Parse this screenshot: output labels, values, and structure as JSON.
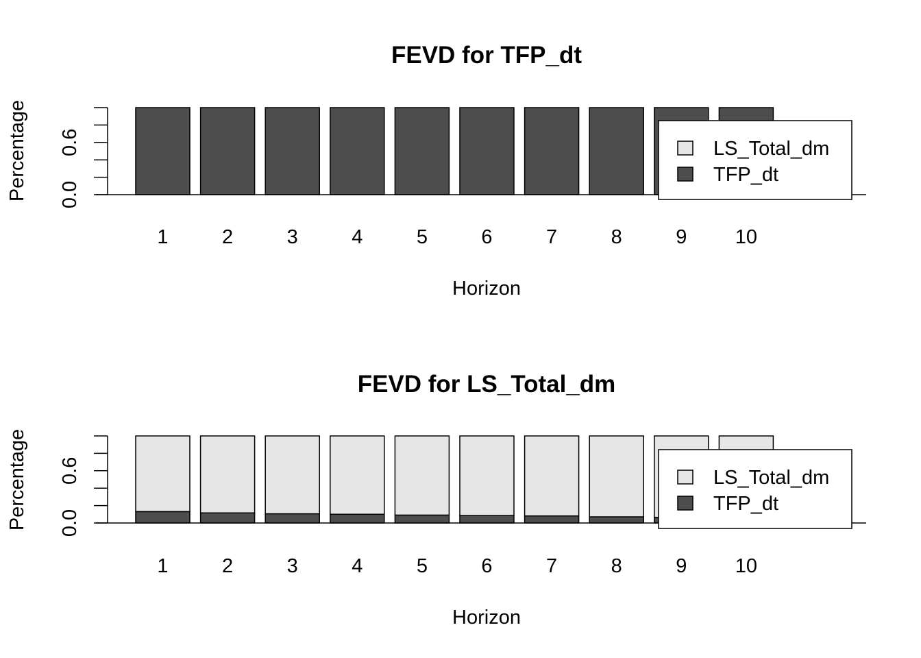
{
  "chart_data": [
    {
      "type": "bar",
      "stacked": true,
      "title": "FEVD for TFP_dt",
      "xlabel": "Horizon",
      "ylabel": "Percentage",
      "categories": [
        "1",
        "2",
        "3",
        "4",
        "5",
        "6",
        "7",
        "8",
        "9",
        "10"
      ],
      "ylim": [
        0,
        1
      ],
      "yticks": [
        0.0,
        0.2,
        0.4,
        0.6,
        0.8,
        1.0
      ],
      "ytick_labels": [
        "0.0",
        "",
        "",
        "0.6",
        "",
        ""
      ],
      "series": [
        {
          "name": "TFP_dt",
          "color": "#4d4d4d",
          "values": [
            1.0,
            1.0,
            1.0,
            1.0,
            1.0,
            1.0,
            1.0,
            1.0,
            1.0,
            1.0
          ]
        },
        {
          "name": "LS_Total_dm",
          "color": "#e6e6e6",
          "values": [
            0.0,
            0.0,
            0.0,
            0.0,
            0.0,
            0.0,
            0.0,
            0.0,
            0.0,
            0.0
          ]
        }
      ],
      "legend": {
        "position": "right",
        "entries": [
          "LS_Total_dm",
          "TFP_dt"
        ]
      },
      "grid": false
    },
    {
      "type": "bar",
      "stacked": true,
      "title": "FEVD for LS_Total_dm",
      "xlabel": "Horizon",
      "ylabel": "Percentage",
      "categories": [
        "1",
        "2",
        "3",
        "4",
        "5",
        "6",
        "7",
        "8",
        "9",
        "10"
      ],
      "ylim": [
        0,
        1
      ],
      "yticks": [
        0.0,
        0.2,
        0.4,
        0.6,
        0.8,
        1.0
      ],
      "ytick_labels": [
        "0.0",
        "",
        "",
        "0.6",
        "",
        ""
      ],
      "series": [
        {
          "name": "TFP_dt",
          "color": "#4d4d4d",
          "values": [
            0.13,
            0.115,
            0.105,
            0.1,
            0.09,
            0.085,
            0.08,
            0.07,
            0.065,
            0.06
          ]
        },
        {
          "name": "LS_Total_dm",
          "color": "#e6e6e6",
          "values": [
            0.87,
            0.885,
            0.895,
            0.9,
            0.91,
            0.915,
            0.92,
            0.93,
            0.935,
            0.94
          ]
        }
      ],
      "legend": {
        "position": "right",
        "entries": [
          "LS_Total_dm",
          "TFP_dt"
        ]
      },
      "grid": false
    }
  ]
}
